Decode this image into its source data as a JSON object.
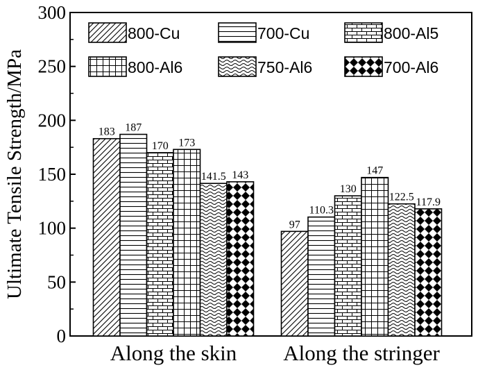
{
  "chart_data": {
    "type": "bar",
    "ylabel": "Ultimate Tensile Strength/MPa",
    "xlabel": "",
    "ylim": [
      0,
      300
    ],
    "yticks": [
      0,
      50,
      100,
      150,
      200,
      250,
      300
    ],
    "grid": false,
    "legend_placement": "top",
    "categories": [
      "Along the skin",
      "Along the stringer"
    ],
    "series": [
      {
        "name": "800-Cu",
        "pattern": "diagonal-hatch",
        "values": [
          183,
          97
        ],
        "labels": [
          "183",
          "97"
        ]
      },
      {
        "name": "700-Cu",
        "pattern": "horizontal-lines",
        "values": [
          187,
          110.3
        ],
        "labels": [
          "187",
          "110.3"
        ]
      },
      {
        "name": "800-Al5",
        "pattern": "brick",
        "values": [
          170,
          130
        ],
        "labels": [
          "170",
          "130"
        ]
      },
      {
        "name": "800-Al6",
        "pattern": "grid",
        "values": [
          173,
          147
        ],
        "labels": [
          "173",
          "147"
        ]
      },
      {
        "name": "750-Al6",
        "pattern": "wave",
        "values": [
          141.5,
          122.5
        ],
        "labels": [
          "141.5",
          "122.5"
        ]
      },
      {
        "name": "700-Al6",
        "pattern": "checker-diamond",
        "values": [
          143,
          117.9
        ],
        "labels": [
          "143",
          "117.9"
        ]
      }
    ],
    "colors": {
      "stroke": "#000000",
      "fill": "#ffffff"
    }
  }
}
